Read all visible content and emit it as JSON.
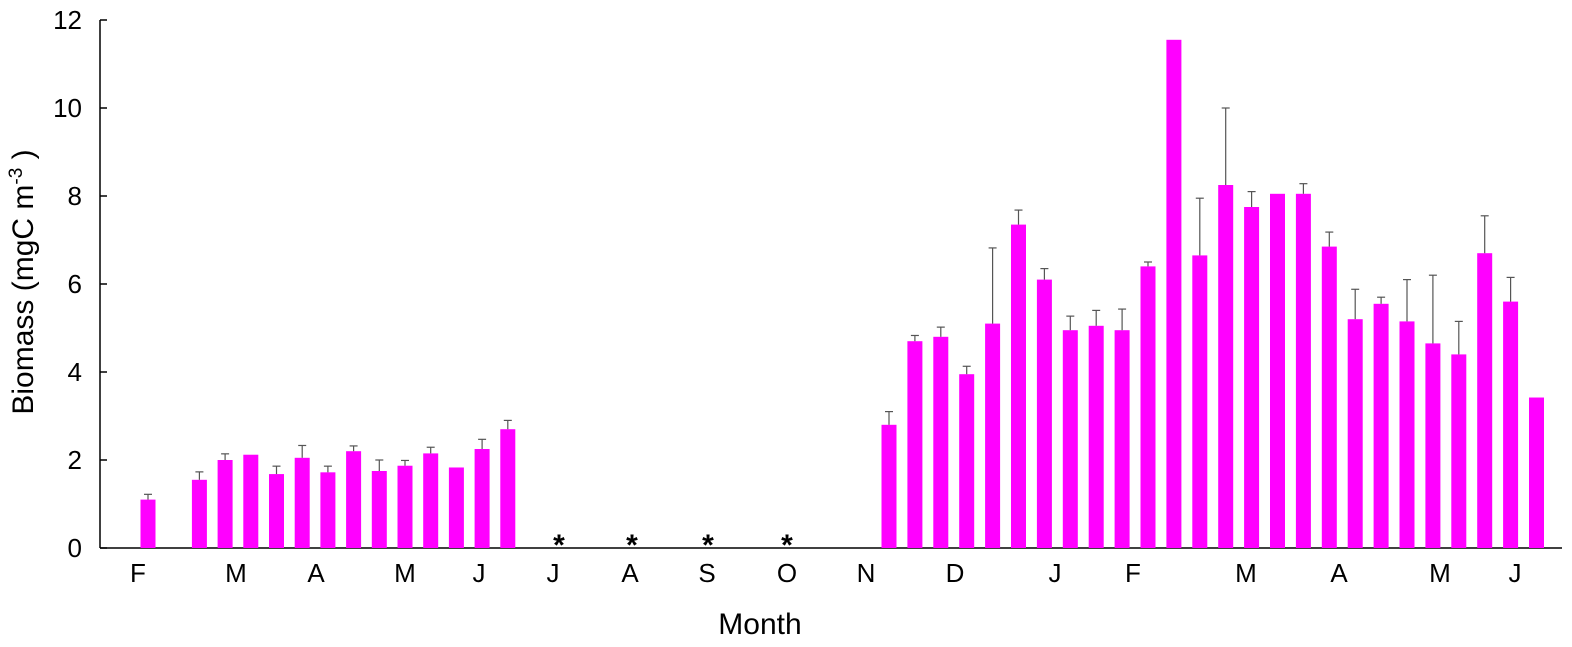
{
  "chart_data": {
    "type": "bar",
    "ylabel_main": "Biomass (mgC m",
    "ylabel_sup": "-3",
    "ylabel_close": " )",
    "xlabel": "Month",
    "ylim": [
      0,
      12
    ],
    "yticks": [
      "0",
      "2",
      "4",
      "6",
      "8",
      "10",
      "12"
    ],
    "bar_color": "#ff00ff",
    "error_color": "#555555",
    "month_labels": [
      "F",
      "M",
      "A",
      "M",
      "J",
      "J",
      "A",
      "S",
      "O",
      "N",
      "D",
      "J",
      "F",
      "M",
      "A",
      "M",
      "J"
    ],
    "no_data_marker": "*",
    "no_data_months": [
      "J",
      "A",
      "S",
      "O"
    ],
    "series": [
      {
        "values": [
          1.1,
          1.55,
          2.0,
          2.12,
          1.68,
          2.05,
          1.72,
          2.2,
          1.75,
          1.87,
          2.15,
          1.83,
          2.25,
          2.7,
          2.8,
          4.7,
          4.8,
          3.95,
          5.1,
          7.35,
          6.1,
          4.95,
          5.05,
          4.95,
          6.4,
          11.55,
          6.65,
          8.25,
          7.75,
          8.05,
          8.05,
          6.85,
          5.2,
          5.55,
          5.15,
          4.65,
          4.4,
          6.7,
          5.6,
          3.42
        ],
        "errors": [
          0.12,
          0.18,
          0.14,
          0.04,
          0.18,
          0.28,
          0.14,
          0.12,
          0.25,
          0.12,
          0.14,
          0.04,
          0.22,
          0.2,
          0.3,
          0.13,
          0.22,
          0.18,
          1.72,
          0.33,
          0.25,
          0.32,
          0.35,
          0.48,
          0.1,
          0.03,
          1.3,
          1.75,
          0.35,
          0.03,
          0.23,
          0.33,
          0.68,
          0.15,
          0.95,
          1.55,
          0.75,
          0.85,
          0.55,
          0.03
        ]
      }
    ]
  }
}
